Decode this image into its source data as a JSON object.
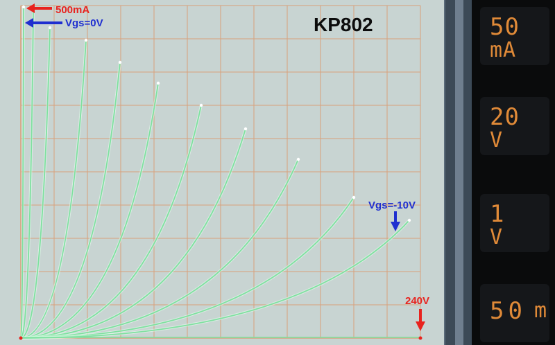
{
  "title": "KP802",
  "annotations": {
    "current_max": "500mA",
    "vgs_top": "Vgs=0V",
    "vgs_bottom": "Vgs=-10V",
    "voltage_max": "240V"
  },
  "readouts": [
    {
      "value": "50",
      "unit": "mA"
    },
    {
      "value": "20",
      "unit": "V"
    },
    {
      "value": "1",
      "unit": "V"
    },
    {
      "value": "50",
      "unit": "m"
    }
  ],
  "colors": {
    "screen": "#c8d4d2",
    "grid": "#d9a07a",
    "trace": "#7fe0a0",
    "annotation_red": "#e8231e",
    "annotation_blue": "#1f2fd0",
    "readout_text": "#e08a38"
  }
}
